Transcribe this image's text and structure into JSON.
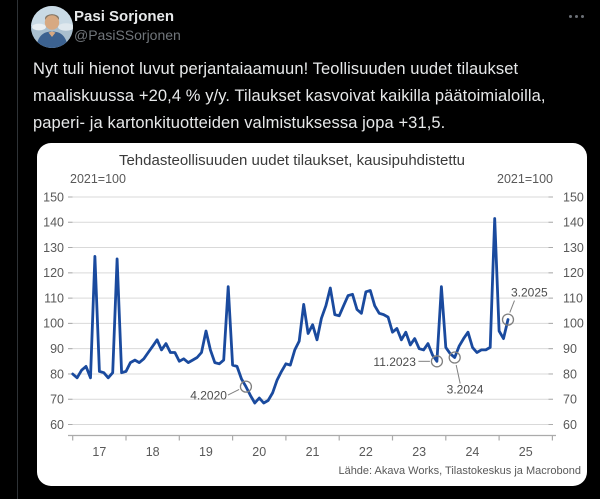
{
  "tweet": {
    "author_name": "Pasi Sorjonen",
    "author_handle": "@PasiSSorjonen",
    "body_text": "Nyt tuli hienot luvut perjantaiaamuun! Teollisuuden uudet tilaukset\nmaaliskuussa +20,4 % y/y. Tilaukset kasvoivat kaikilla päätoimialoilla,\npaperi- ja kartonkituotteiden valmistuksessa jopa +31,5."
  },
  "colors": {
    "background": "#000000",
    "card": "#ffffff",
    "line_blue": "#1a4a9e",
    "text_primary": "#e7e9ea",
    "text_secondary": "#71767b",
    "chart_text": "#595959",
    "gridline": "#d9d9d9"
  },
  "chart_data": {
    "type": "line",
    "title": "Tehdasteollisuuden uudet tilaukset, kausipuhdistettu",
    "unit_label_left": "2021=100",
    "unit_label_right": "2021=100",
    "source": "Lähde: Akava Works, Tilastokeskus ja Macrobond",
    "x_start_month": "2017-01",
    "x_frequency": "monthly",
    "x_tick_labels": [
      "17",
      "18",
      "19",
      "20",
      "21",
      "22",
      "23",
      "24",
      "25"
    ],
    "ylim": [
      60,
      150
    ],
    "ytick_step": 10,
    "grid": true,
    "line_color": "#1a4a9e",
    "values": [
      80,
      78.5,
      81.5,
      83,
      78.5,
      126.5,
      81,
      80.5,
      78.5,
      80.5,
      125.5,
      80.5,
      81,
      84.5,
      85.5,
      84.5,
      86,
      88.5,
      91,
      93.5,
      89.5,
      92,
      88.5,
      88.5,
      85,
      86,
      84.5,
      85.5,
      86.5,
      88.5,
      97,
      89.5,
      84.5,
      84,
      85.5,
      114.5,
      83.5,
      83,
      78,
      75,
      71.5,
      68.5,
      70.5,
      68.5,
      69.5,
      72.5,
      77.5,
      81,
      84,
      83.5,
      89.5,
      93,
      107.5,
      96,
      99.5,
      93.5,
      102,
      107,
      114,
      103.5,
      103,
      107,
      111,
      111.5,
      105.5,
      104,
      112.5,
      113,
      107,
      104,
      103.5,
      102.5,
      96.5,
      98,
      93.5,
      96.5,
      91.5,
      94,
      90,
      89.5,
      92,
      87.5,
      85,
      114.5,
      90.5,
      88,
      86.5,
      91,
      94,
      96.5,
      90.5,
      88.5,
      89.5,
      89.5,
      90.5,
      141.5,
      97,
      94,
      101.5
    ],
    "annotations": [
      {
        "label": "4.2020",
        "month_index": 39,
        "value": 75,
        "side": "left"
      },
      {
        "label": "11.2023",
        "month_index": 82,
        "value": 85,
        "side": "left-dash"
      },
      {
        "label": "3.2024",
        "month_index": 86,
        "value": 86.5,
        "side": "below-right"
      },
      {
        "label": "3.2025",
        "month_index": 98,
        "value": 101.5,
        "side": "above-right"
      }
    ]
  }
}
